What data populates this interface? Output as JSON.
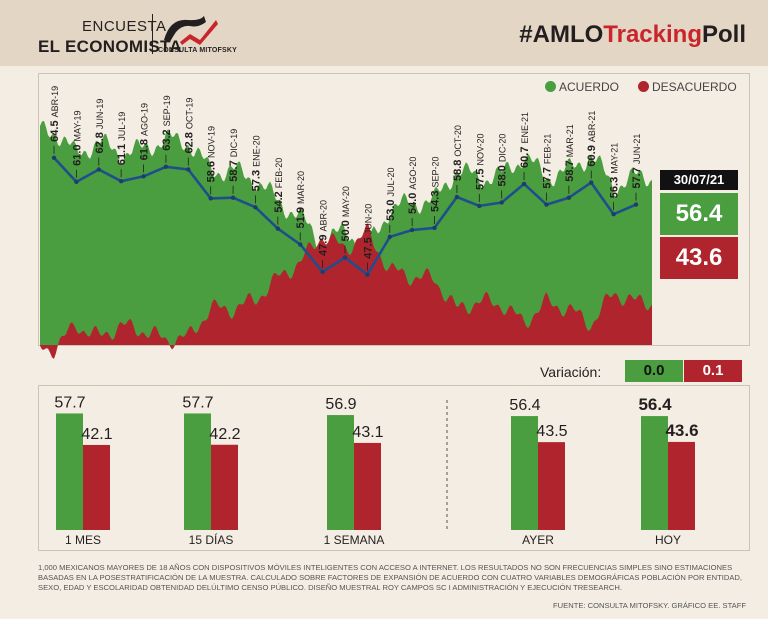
{
  "header": {
    "brand_line1": "ENCUESTA",
    "brand_line2": "EL ECONOMISTA",
    "logo_text": "CONSULTA MITOFSKY",
    "tagline_prefix": "#AMLO",
    "tagline_highlight": "Tracking",
    "tagline_suffix": "Poll"
  },
  "legend": {
    "acuerdo": "ACUERDO",
    "desacuerdo": "DESACUERDO"
  },
  "current": {
    "date": "30/07/21",
    "acuerdo": "56.4",
    "desacuerdo": "43.6"
  },
  "variation": {
    "label": "Variación:",
    "acuerdo": "0.0",
    "desacuerdo": "0.1"
  },
  "colors": {
    "green": "#4a9e3f",
    "red": "#b0252d",
    "line": "#1f4e8c"
  },
  "chart_data": [
    {
      "type": "line",
      "categories": [
        "ABR-19",
        "MAY-19",
        "JUN-19",
        "JUL-19",
        "AGO-19",
        "SEP-19",
        "OCT-19",
        "NOV-19",
        "DIC-19",
        "ENE-20",
        "FEB-20",
        "MAR-20",
        "ABR-20",
        "MAY-20",
        "JUN-20",
        "JUL-20",
        "AGO-20",
        "SEP-20",
        "OCT-20",
        "NOV-20",
        "DIC-20",
        "ENE-21",
        "FEB-21",
        "MAR-21",
        "ABR-21",
        "MAY-21",
        "JUN-21"
      ],
      "values": [
        64.5,
        61.0,
        62.8,
        61.1,
        61.8,
        63.2,
        62.8,
        58.6,
        58.7,
        57.3,
        54.2,
        51.9,
        47.9,
        50.0,
        47.5,
        53.0,
        54.0,
        54.3,
        58.8,
        57.5,
        58.0,
        60.7,
        57.7,
        58.7,
        60.9,
        56.3,
        57.7
      ],
      "value_labels": [
        "64.5",
        "61.0",
        "62.8",
        "61.1",
        "61.8",
        "63.2",
        "62.8",
        "58.6",
        "58.7",
        "57.3",
        "54.2",
        "51.9",
        "47.9",
        "50.0",
        "47.5",
        "53.0",
        "54.0",
        "54.3",
        "58.8",
        "57.5",
        "58.0",
        "60.7",
        "57.7",
        "58.7",
        "60.9",
        "56.3",
        "57.7"
      ],
      "series": [
        {
          "name": "ACUERDO",
          "type": "area"
        },
        {
          "name": "DESACUERDO",
          "type": "area"
        }
      ]
    },
    {
      "type": "bar",
      "categories": [
        "1 MES",
        "15 DÍAS",
        "1 SEMANA",
        "AYER",
        "HOY"
      ],
      "series": [
        {
          "name": "ACUERDO",
          "values": [
            57.7,
            57.7,
            56.9,
            56.4,
            56.4
          ],
          "labels": [
            "57.7",
            "57.7",
            "56.9",
            "56.4",
            "56.4"
          ]
        },
        {
          "name": "DESACUERDO",
          "values": [
            42.1,
            42.2,
            43.1,
            43.5,
            43.6
          ],
          "labels": [
            "42.1",
            "42.2",
            "43.1",
            "43.5",
            "43.6"
          ]
        }
      ]
    }
  ],
  "footnote": "1,000 MEXICANOS MAYORES DE 18 AÑOS CON DISPOSITIVOS MÓVILES INTELIGENTES CON ACCESO A INTERNET. LOS RESULTADOS NO SON FRECUENCIAS SIMPLES SINO ESTIMACIONES BASADAS EN LA POSESTRATIFICACIÓN DE LA MUESTRA. CALCULADO SOBRE FACTORES DE EXPANSIÓN DE ACUERDO CON CUATRO VARIABLES DEMOGRÁFICAS POBLACIÓN POR ENTIDAD, SEXO, EDAD Y ESCOLARIDAD OBTENIDAD DELÚLTIMO CENSO PÚBLICO. DISEÑO MUESTRAL ROY CAMPOS SC I ADMINISTRACIÓN Y EJECUCIÓN TRESEARCH.",
  "source": "FUENTE: CONSULTA MITOFSKY. GRÁFICO EE. STAFF"
}
